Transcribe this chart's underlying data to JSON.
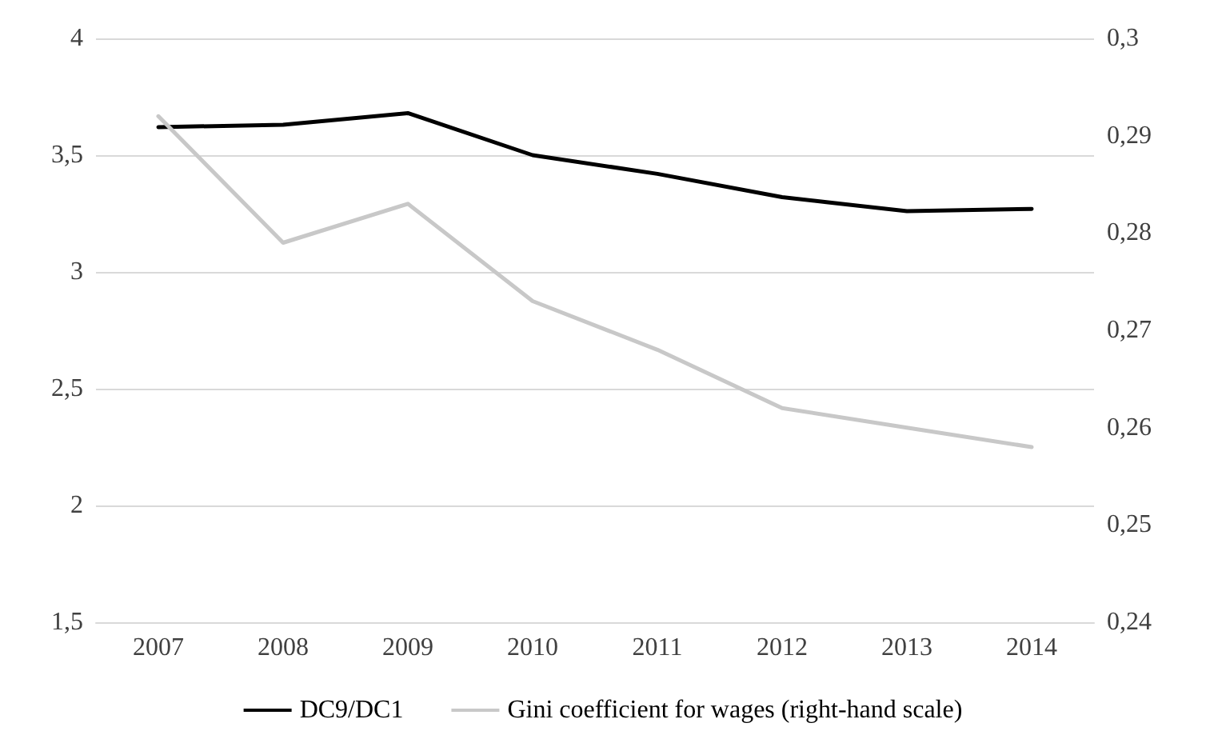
{
  "chart_data": {
    "type": "line",
    "categories": [
      "2007",
      "2008",
      "2009",
      "2010",
      "2011",
      "2012",
      "2013",
      "2014"
    ],
    "series": [
      {
        "name": "DC9/DC1",
        "color": "#000000",
        "values": [
          3.62,
          3.63,
          3.68,
          3.5,
          3.42,
          3.32,
          3.26,
          3.27
        ]
      },
      {
        "name": "Gini coefficient for wages (right-hand scale)",
        "color": "#c8c8c8",
        "axis": "y2",
        "values": [
          0.292,
          0.279,
          0.283,
          0.273,
          0.268,
          0.262,
          0.26,
          0.258
        ]
      }
    ],
    "ylim": [
      1.5,
      4
    ],
    "yticks": [
      {
        "value": 1.5,
        "label": "1,5"
      },
      2,
      {
        "value": 2.5,
        "label": "2,5"
      },
      3,
      {
        "value": 3.5,
        "label": "3,5"
      },
      4
    ],
    "y2lim": [
      0.24,
      0.3
    ],
    "y2ticks": [
      {
        "value": 0.24,
        "label": "0,24"
      },
      {
        "value": 0.25,
        "label": "0,25"
      },
      {
        "value": 0.26,
        "label": "0,26"
      },
      {
        "value": 0.27,
        "label": "0,27"
      },
      {
        "value": 0.28,
        "label": "0,28"
      },
      {
        "value": 0.29,
        "label": "0,29"
      },
      {
        "value": 0.3,
        "label": "0,3"
      }
    ],
    "grid": "y",
    "legend": "bottom",
    "marker": "none",
    "line_style": "solid"
  }
}
